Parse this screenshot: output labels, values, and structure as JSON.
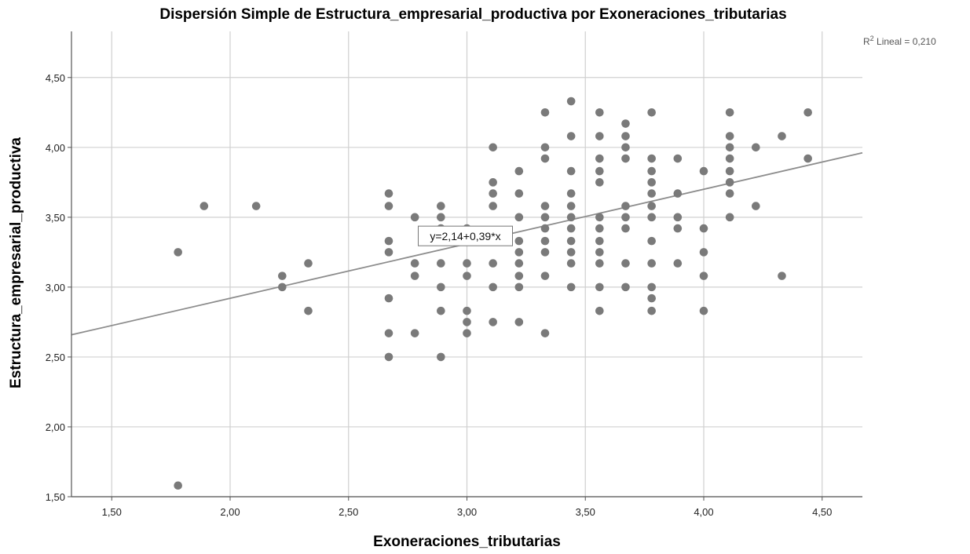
{
  "chart_data": {
    "type": "scatter",
    "title": "Dispersión Simple de Estructura_empresarial_productiva por Exoneraciones_tributarias",
    "xlabel": "Exoneraciones_tributarias",
    "ylabel": "Estructura_empresarial_productiva",
    "xlim": [
      1.33,
      4.67
    ],
    "ylim": [
      1.5,
      4.83
    ],
    "x_ticks": [
      "1,50",
      "2,00",
      "2,50",
      "3,00",
      "3,50",
      "4,00",
      "4,50"
    ],
    "x_tick_values": [
      1.5,
      2.0,
      2.5,
      3.0,
      3.5,
      4.0,
      4.5
    ],
    "y_ticks": [
      "1,50",
      "2,00",
      "2,50",
      "3,00",
      "3,50",
      "4,00",
      "4,50"
    ],
    "y_tick_values": [
      1.5,
      2.0,
      2.5,
      3.0,
      3.5,
      4.0,
      4.5
    ],
    "grid": true,
    "fit_line": {
      "intercept": 2.14,
      "slope": 0.39,
      "label": "y=2,14+0,39*x",
      "label_at_x": 3.0
    },
    "r2_prefix": "R",
    "r2_sup": "2",
    "r2_text": " Lineal = 0,210",
    "colors": {
      "points": "#7a7a7a",
      "line": "#8c8c8c",
      "grid": "#d0d0d0",
      "axis": "#555555"
    },
    "points": [
      [
        1.78,
        3.25
      ],
      [
        1.78,
        1.58
      ],
      [
        1.89,
        3.58
      ],
      [
        2.11,
        3.58
      ],
      [
        2.22,
        3.08
      ],
      [
        2.22,
        3.0
      ],
      [
        2.33,
        3.17
      ],
      [
        2.33,
        2.83
      ],
      [
        2.67,
        3.67
      ],
      [
        2.67,
        3.58
      ],
      [
        2.67,
        3.33
      ],
      [
        2.67,
        3.25
      ],
      [
        2.67,
        2.92
      ],
      [
        2.67,
        2.67
      ],
      [
        2.67,
        2.5
      ],
      [
        2.78,
        3.5
      ],
      [
        2.78,
        3.17
      ],
      [
        2.78,
        3.08
      ],
      [
        2.78,
        2.67
      ],
      [
        2.89,
        3.58
      ],
      [
        2.89,
        3.5
      ],
      [
        2.89,
        3.42
      ],
      [
        2.89,
        3.17
      ],
      [
        2.89,
        3.0
      ],
      [
        2.89,
        2.83
      ],
      [
        2.89,
        2.5
      ],
      [
        3.0,
        3.42
      ],
      [
        3.0,
        3.17
      ],
      [
        3.0,
        3.08
      ],
      [
        3.0,
        2.83
      ],
      [
        3.0,
        2.75
      ],
      [
        3.0,
        2.67
      ],
      [
        3.11,
        4.0
      ],
      [
        3.11,
        3.75
      ],
      [
        3.11,
        3.67
      ],
      [
        3.11,
        3.58
      ],
      [
        3.11,
        3.17
      ],
      [
        3.11,
        3.0
      ],
      [
        3.11,
        2.75
      ],
      [
        3.22,
        3.83
      ],
      [
        3.22,
        3.67
      ],
      [
        3.22,
        3.5
      ],
      [
        3.22,
        3.33
      ],
      [
        3.22,
        3.25
      ],
      [
        3.22,
        3.17
      ],
      [
        3.22,
        3.08
      ],
      [
        3.22,
        3.0
      ],
      [
        3.22,
        2.75
      ],
      [
        3.33,
        4.25
      ],
      [
        3.33,
        4.0
      ],
      [
        3.33,
        3.92
      ],
      [
        3.33,
        3.58
      ],
      [
        3.33,
        3.5
      ],
      [
        3.33,
        3.42
      ],
      [
        3.33,
        3.33
      ],
      [
        3.33,
        3.25
      ],
      [
        3.33,
        3.08
      ],
      [
        3.33,
        2.67
      ],
      [
        3.44,
        4.33
      ],
      [
        3.44,
        4.08
      ],
      [
        3.44,
        3.83
      ],
      [
        3.44,
        3.67
      ],
      [
        3.44,
        3.58
      ],
      [
        3.44,
        3.5
      ],
      [
        3.44,
        3.42
      ],
      [
        3.44,
        3.33
      ],
      [
        3.44,
        3.25
      ],
      [
        3.44,
        3.17
      ],
      [
        3.44,
        3.0
      ],
      [
        3.56,
        4.25
      ],
      [
        3.56,
        4.08
      ],
      [
        3.56,
        3.92
      ],
      [
        3.56,
        3.83
      ],
      [
        3.56,
        3.75
      ],
      [
        3.56,
        3.5
      ],
      [
        3.56,
        3.42
      ],
      [
        3.56,
        3.33
      ],
      [
        3.56,
        3.25
      ],
      [
        3.56,
        3.17
      ],
      [
        3.56,
        3.0
      ],
      [
        3.56,
        2.83
      ],
      [
        3.67,
        4.17
      ],
      [
        3.67,
        4.08
      ],
      [
        3.67,
        4.0
      ],
      [
        3.67,
        3.92
      ],
      [
        3.67,
        3.58
      ],
      [
        3.67,
        3.5
      ],
      [
        3.67,
        3.42
      ],
      [
        3.67,
        3.17
      ],
      [
        3.67,
        3.0
      ],
      [
        3.78,
        4.25
      ],
      [
        3.78,
        3.92
      ],
      [
        3.78,
        3.83
      ],
      [
        3.78,
        3.75
      ],
      [
        3.78,
        3.67
      ],
      [
        3.78,
        3.58
      ],
      [
        3.78,
        3.5
      ],
      [
        3.78,
        3.33
      ],
      [
        3.78,
        3.17
      ],
      [
        3.78,
        3.0
      ],
      [
        3.78,
        2.92
      ],
      [
        3.78,
        2.83
      ],
      [
        3.89,
        3.92
      ],
      [
        3.89,
        3.67
      ],
      [
        3.89,
        3.5
      ],
      [
        3.89,
        3.42
      ],
      [
        3.89,
        3.17
      ],
      [
        4.0,
        3.83
      ],
      [
        4.0,
        3.42
      ],
      [
        4.0,
        3.25
      ],
      [
        4.0,
        3.08
      ],
      [
        4.0,
        2.83
      ],
      [
        4.11,
        4.25
      ],
      [
        4.11,
        4.08
      ],
      [
        4.11,
        4.0
      ],
      [
        4.11,
        3.92
      ],
      [
        4.11,
        3.83
      ],
      [
        4.11,
        3.75
      ],
      [
        4.11,
        3.67
      ],
      [
        4.11,
        3.5
      ],
      [
        4.22,
        4.0
      ],
      [
        4.22,
        3.58
      ],
      [
        4.33,
        4.08
      ],
      [
        4.33,
        3.08
      ],
      [
        4.44,
        4.25
      ],
      [
        4.44,
        3.92
      ]
    ]
  }
}
